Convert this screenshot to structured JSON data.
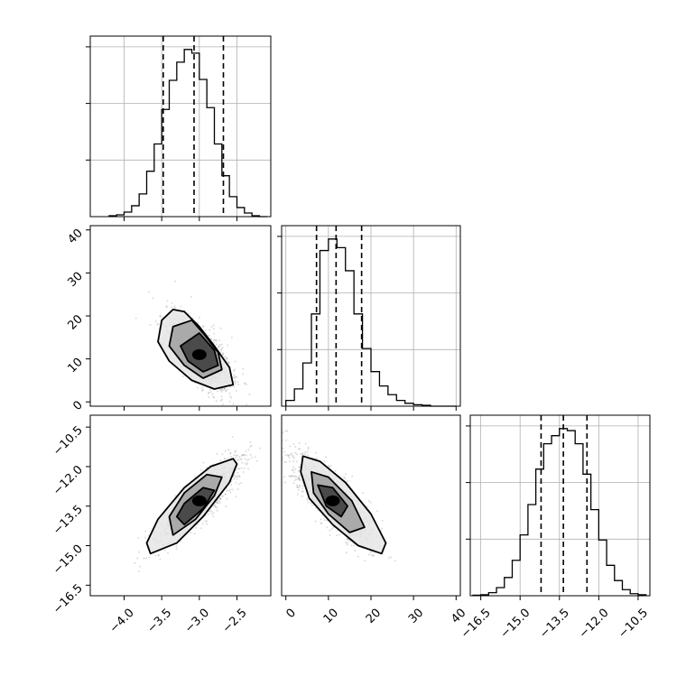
{
  "colors": {
    "line": "#000000",
    "grid": "#b0b0b0",
    "scatter": "#9a9a9a",
    "background": "#ffffff"
  },
  "chart_data": [
    {
      "type": "histogram",
      "panel": "param-1-marginal",
      "grid": true,
      "bin_edges": [
        -4.2,
        -4.1,
        -4.0,
        -3.9,
        -3.8,
        -3.7,
        -3.6,
        -3.5,
        -3.4,
        -3.3,
        -3.2,
        -3.1,
        -3.0,
        -2.9,
        -2.8,
        -2.7,
        -2.6,
        -2.5,
        -2.4,
        -2.3,
        -2.2,
        -2.1
      ],
      "counts": [
        1,
        2,
        5,
        12,
        25,
        50,
        80,
        118,
        150,
        170,
        184,
        180,
        151,
        120,
        80,
        45,
        22,
        10,
        4,
        1,
        0
      ],
      "quantiles": [
        -3.48,
        -3.07,
        -2.68
      ],
      "xlim": [
        -4.45,
        -2.05
      ],
      "x_ticks": [
        "−4.0",
        "−3.5",
        "−3.0",
        "−2.5"
      ],
      "x_tick_values": [
        -4.0,
        -3.5,
        -3.0,
        -2.5
      ]
    },
    {
      "type": "histogram",
      "panel": "param-2-marginal",
      "grid": true,
      "bin_edges": [
        0,
        2,
        4,
        6,
        8,
        10,
        12,
        14,
        16,
        18,
        20,
        22,
        24,
        26,
        28,
        30,
        32,
        34,
        36,
        38,
        40
      ],
      "counts": [
        2,
        6,
        15,
        32,
        54,
        58,
        55,
        47,
        32,
        20,
        12,
        7,
        4,
        2,
        1,
        0.5,
        0.3,
        0,
        0,
        0
      ],
      "quantiles": [
        7.2,
        11.8,
        17.8
      ],
      "xlim": [
        -1,
        41
      ],
      "x_ticks": [
        "0",
        "10",
        "20",
        "30",
        "40"
      ],
      "y_ticks": [
        "0",
        "10",
        "20",
        "30",
        "40"
      ],
      "tick_values": [
        0,
        10,
        20,
        30,
        40
      ]
    },
    {
      "type": "histogram",
      "panel": "param-3-marginal",
      "grid": true,
      "bin_edges": [
        -16.8,
        -16.5,
        -16.2,
        -15.9,
        -15.6,
        -15.3,
        -15.0,
        -14.7,
        -14.4,
        -14.1,
        -13.8,
        -13.5,
        -13.2,
        -12.9,
        -12.6,
        -12.3,
        -12.0,
        -11.7,
        -11.4,
        -11.1,
        -10.8,
        -10.5,
        -10.2
      ],
      "counts": [
        0.5,
        1,
        3,
        8,
        18,
        35,
        60,
        90,
        125,
        150,
        158,
        165,
        163,
        150,
        120,
        85,
        55,
        30,
        15,
        6,
        2,
        1
      ],
      "quantiles": [
        -14.2,
        -13.35,
        -12.45
      ],
      "xlim": [
        -16.9,
        -10.05
      ],
      "x_ticks": [
        "−16.5",
        "−15.0",
        "−13.5",
        "−12.0",
        "−10.5"
      ],
      "y_ticks": [
        "−16.5",
        "−15.0",
        "−13.5",
        "−12.0",
        "−10.5"
      ],
      "tick_values": [
        -16.5,
        -15.0,
        -13.5,
        -12.0,
        -10.5
      ]
    },
    {
      "type": "scatter",
      "panel": "param-1-vs-param-2",
      "xlim": [
        -4.45,
        -2.05
      ],
      "ylim": [
        -1,
        41
      ],
      "center": [
        -3.0,
        11.0
      ],
      "contours": [
        [
          [
            -3.35,
            21.5
          ],
          [
            -3.2,
            21.0
          ],
          [
            -3.0,
            17.5
          ],
          [
            -2.8,
            13.0
          ],
          [
            -2.6,
            8.0
          ],
          [
            -2.55,
            4.0
          ],
          [
            -2.8,
            3.0
          ],
          [
            -3.1,
            5.0
          ],
          [
            -3.4,
            9.5
          ],
          [
            -3.55,
            14.0
          ],
          [
            -3.5,
            19.0
          ]
        ],
        [
          [
            -3.1,
            19.0
          ],
          [
            -2.95,
            16.0
          ],
          [
            -2.75,
            11.5
          ],
          [
            -2.7,
            7.5
          ],
          [
            -2.95,
            5.5
          ],
          [
            -3.2,
            8.5
          ],
          [
            -3.4,
            13.0
          ],
          [
            -3.35,
            17.5
          ]
        ],
        [
          [
            -3.0,
            16.0
          ],
          [
            -2.8,
            12.0
          ],
          [
            -2.75,
            8.5
          ],
          [
            -2.95,
            7.0
          ],
          [
            -3.15,
            9.5
          ],
          [
            -3.25,
            13.0
          ]
        ]
      ]
    },
    {
      "type": "scatter",
      "panel": "param-1-vs-param-3",
      "xlim": [
        -4.45,
        -2.05
      ],
      "ylim": [
        -16.9,
        -10.05
      ],
      "center": [
        -3.0,
        -13.3
      ],
      "contours": [
        [
          [
            -3.65,
            -15.3
          ],
          [
            -3.3,
            -14.9
          ],
          [
            -2.95,
            -13.9
          ],
          [
            -2.6,
            -12.6
          ],
          [
            -2.5,
            -11.9
          ],
          [
            -2.55,
            -11.7
          ],
          [
            -2.85,
            -12.0
          ],
          [
            -3.2,
            -12.8
          ],
          [
            -3.55,
            -14.0
          ],
          [
            -3.7,
            -14.9
          ]
        ],
        [
          [
            -3.35,
            -14.6
          ],
          [
            -3.05,
            -14.0
          ],
          [
            -2.8,
            -13.1
          ],
          [
            -2.7,
            -12.4
          ],
          [
            -2.9,
            -12.3
          ],
          [
            -3.2,
            -13.0
          ],
          [
            -3.4,
            -13.9
          ]
        ],
        [
          [
            -3.2,
            -14.2
          ],
          [
            -2.95,
            -13.6
          ],
          [
            -2.8,
            -12.9
          ],
          [
            -2.95,
            -12.8
          ],
          [
            -3.2,
            -13.4
          ],
          [
            -3.3,
            -13.9
          ]
        ]
      ]
    },
    {
      "type": "scatter",
      "panel": "param-2-vs-param-3",
      "xlim": [
        -1,
        41
      ],
      "ylim": [
        -16.9,
        -10.05
      ],
      "center": [
        11.0,
        -13.3
      ],
      "contours": [
        [
          [
            4.0,
            -11.6
          ],
          [
            8.0,
            -11.8
          ],
          [
            14.0,
            -12.6
          ],
          [
            20.0,
            -13.8
          ],
          [
            23.5,
            -14.9
          ],
          [
            22.5,
            -15.3
          ],
          [
            17.0,
            -15.0
          ],
          [
            11.0,
            -14.2
          ],
          [
            5.5,
            -13.2
          ],
          [
            3.5,
            -12.2
          ]
        ],
        [
          [
            6.0,
            -12.2
          ],
          [
            10.0,
            -12.4
          ],
          [
            15.5,
            -13.3
          ],
          [
            18.5,
            -14.3
          ],
          [
            15.0,
            -14.5
          ],
          [
            10.0,
            -13.8
          ],
          [
            6.5,
            -13.0
          ]
        ],
        [
          [
            7.5,
            -12.7
          ],
          [
            11.0,
            -12.8
          ],
          [
            14.5,
            -13.5
          ],
          [
            13.0,
            -13.9
          ],
          [
            9.5,
            -13.5
          ]
        ]
      ]
    }
  ]
}
